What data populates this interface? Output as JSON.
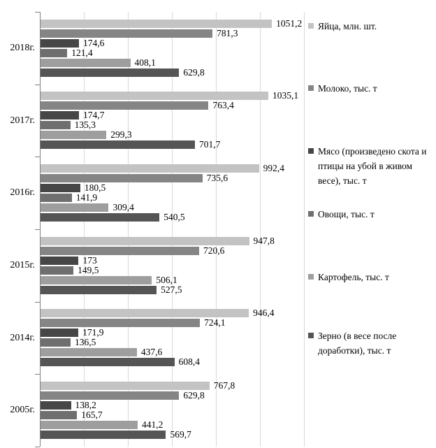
{
  "chart_data": {
    "type": "bar",
    "orientation": "horizontal",
    "title": "",
    "xlabel": "",
    "ylabel": "",
    "xlim": [
      0,
      1200
    ],
    "gridline_step": 200,
    "grid": true,
    "legend_position": "right",
    "value_label_decimal_separator": ",",
    "categories": [
      "2018г.",
      "2017г.",
      "2016г.",
      "2015г.",
      "2014г.",
      "2005г."
    ],
    "series": [
      {
        "name": "Яйца, млн. шт.",
        "color": "#c3c3c3",
        "values": [
          1051.2,
          1035.1,
          992.4,
          947.8,
          946.4,
          767.8
        ],
        "labels": [
          "1051,2",
          "1035,1",
          "992,4",
          "947,8",
          "946,4",
          "767,8"
        ]
      },
      {
        "name": "Молоко, тыс. т",
        "color": "#858585",
        "values": [
          781.3,
          763.4,
          735.6,
          720.6,
          724.1,
          629.8
        ],
        "labels": [
          "781,3",
          "763,4",
          "735,6",
          "720,6",
          "724,1",
          "629,8"
        ]
      },
      {
        "name": "Мясо (произведено скота и птицы на убой в живом весе), тыс. т",
        "color": "#464646",
        "values": [
          174.6,
          174.7,
          180.5,
          173,
          171.9,
          138.2
        ],
        "labels": [
          "174,6",
          "174,7",
          "180,5",
          "173",
          "171,9",
          "138,2"
        ]
      },
      {
        "name": "Овощи, тыс. т",
        "color": "#6f6f6f",
        "values": [
          121.4,
          135.3,
          141.9,
          149.5,
          136.5,
          165.7
        ],
        "labels": [
          "121,4",
          "135,3",
          "141,9",
          "149,5",
          "136,5",
          "165,7"
        ]
      },
      {
        "name": "Картофель, тыс. т",
        "color": "#9e9e9e",
        "values": [
          408.1,
          299.3,
          309.4,
          506.1,
          437.6,
          441.2
        ],
        "labels": [
          "408,1",
          "299,3",
          "309,4",
          "506,1",
          "437,6",
          "441,2"
        ]
      },
      {
        "name": "Зерно (в весе после доработки), тыс. т",
        "color": "#555555",
        "values": [
          629.8,
          701.7,
          540.5,
          527.5,
          608.4,
          569.7
        ],
        "labels": [
          "629,8",
          "701,7",
          "540,5",
          "527,5",
          "608,4",
          "569,7"
        ]
      }
    ]
  },
  "colors": {
    "background": "#ffffff",
    "gridline": "#d9d9d9",
    "axis": "#808080",
    "text": "#000000"
  }
}
